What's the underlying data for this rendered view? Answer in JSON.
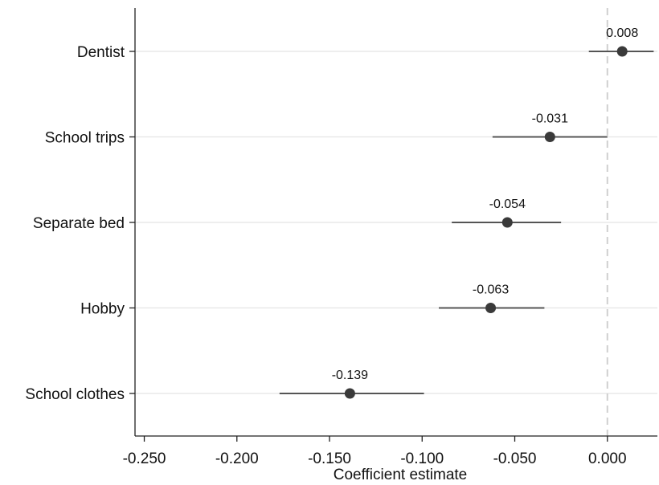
{
  "chart_data": {
    "type": "coefplot",
    "xlabel": "Coefficient estimate",
    "categories": [
      "Dentist",
      "School trips",
      "Separate bed",
      "Hobby",
      "School clothes"
    ],
    "values": [
      0.008,
      -0.031,
      -0.054,
      -0.063,
      -0.139
    ],
    "lower": [
      -0.01,
      -0.062,
      -0.084,
      -0.091,
      -0.177
    ],
    "upper": [
      0.025,
      0.0,
      -0.025,
      -0.034,
      -0.099
    ],
    "color": "#3a3a3a",
    "xlim": [
      -0.255,
      0.027
    ],
    "xticks": [
      {
        "value": -0.25,
        "label": "-0.250"
      },
      {
        "value": -0.2,
        "label": "-0.200"
      },
      {
        "value": -0.15,
        "label": "-0.150"
      },
      {
        "value": -0.1,
        "label": "-0.100"
      },
      {
        "value": -0.05,
        "label": "-0.050"
      },
      {
        "value": 0,
        "label": "0.000"
      }
    ],
    "reference_line": 0,
    "grid": true
  }
}
